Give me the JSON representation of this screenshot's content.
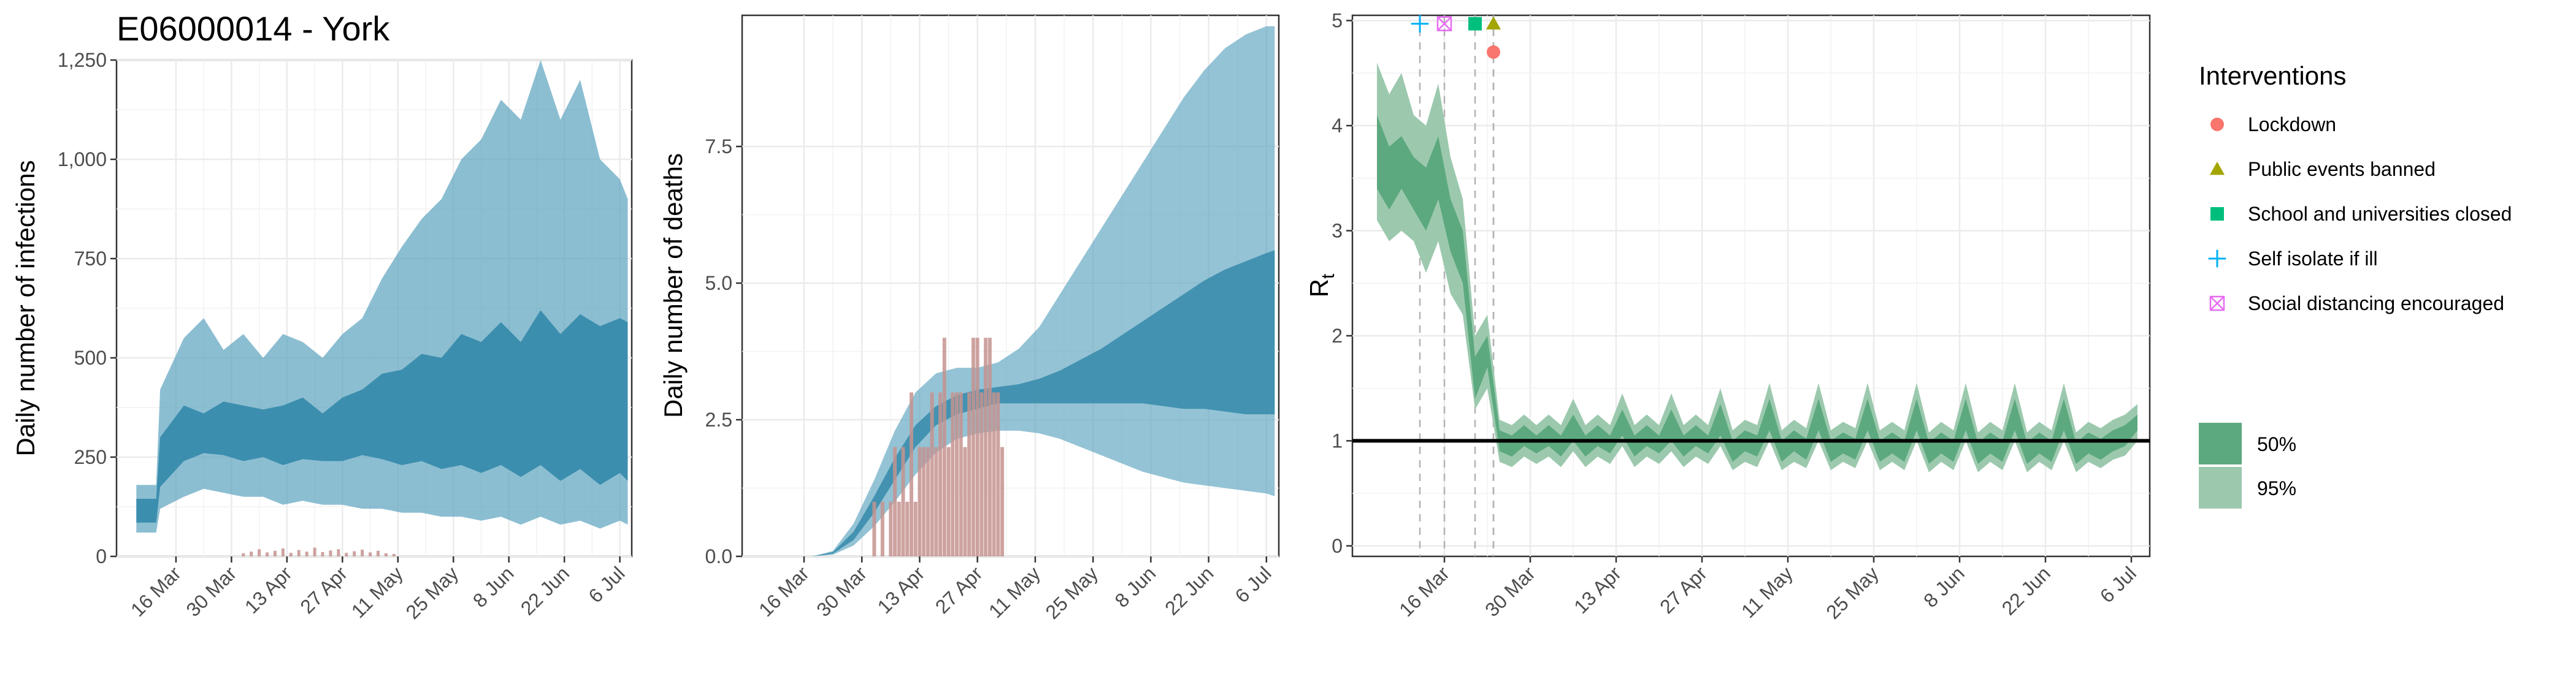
{
  "chart_data": [
    {
      "type": "area",
      "title": "E06000014 - York",
      "ylabel": "Daily number of infections",
      "ylim": [
        0,
        1250
      ],
      "yticks": [
        0,
        250,
        500,
        750,
        1000,
        1250
      ],
      "ytick_labels": [
        "0",
        "250",
        "500",
        "750",
        "1,000",
        "1,250"
      ],
      "xlim_days": [
        -12,
        118
      ],
      "xtick_days": [
        3,
        17,
        31,
        45,
        59,
        73,
        87,
        101,
        115
      ],
      "xtick_labels": [
        "16 Mar",
        "30 Mar",
        "13 Apr",
        "27 Apr",
        "11 May",
        "25 May",
        "8 Jun",
        "22 Jun",
        "6 Jul"
      ],
      "series": [
        {
          "name": "50%",
          "color": "#2e86a8",
          "x": [
            -7,
            -2,
            -1,
            5,
            10,
            15,
            20,
            25,
            30,
            35,
            40,
            45,
            50,
            55,
            60,
            65,
            70,
            75,
            80,
            85,
            90,
            95,
            100,
            105,
            110,
            115,
            117
          ],
          "low": [
            85,
            85,
            175,
            240,
            260,
            255,
            240,
            250,
            230,
            245,
            240,
            240,
            255,
            245,
            230,
            240,
            220,
            230,
            210,
            230,
            200,
            230,
            190,
            220,
            180,
            210,
            190
          ],
          "high": [
            145,
            145,
            300,
            380,
            360,
            390,
            380,
            370,
            380,
            400,
            360,
            400,
            420,
            460,
            470,
            510,
            500,
            560,
            540,
            590,
            540,
            620,
            560,
            610,
            580,
            600,
            590
          ]
        },
        {
          "name": "95%",
          "color": "#5ba3bf",
          "x": [
            -7,
            -2,
            -1,
            5,
            10,
            15,
            20,
            25,
            30,
            35,
            40,
            45,
            50,
            55,
            60,
            65,
            70,
            75,
            80,
            85,
            90,
            95,
            100,
            105,
            110,
            115,
            117
          ],
          "low": [
            60,
            60,
            120,
            150,
            170,
            160,
            150,
            150,
            130,
            140,
            130,
            130,
            120,
            120,
            110,
            110,
            100,
            100,
            90,
            100,
            80,
            100,
            80,
            90,
            70,
            90,
            80
          ],
          "high": [
            180,
            180,
            420,
            550,
            600,
            520,
            560,
            500,
            560,
            540,
            500,
            560,
            600,
            700,
            780,
            850,
            900,
            1000,
            1050,
            1150,
            1100,
            1250,
            1100,
            1200,
            1000,
            950,
            900
          ]
        }
      ],
      "observed_bars": {
        "name": "Observed cases",
        "color": "#c4938f",
        "x": [
          20,
          22,
          24,
          26,
          28,
          30,
          32,
          34,
          36,
          38,
          40,
          42,
          44,
          46,
          48,
          50,
          52,
          54,
          56,
          58
        ],
        "y": [
          8,
          12,
          18,
          10,
          14,
          20,
          9,
          16,
          12,
          22,
          11,
          15,
          18,
          9,
          13,
          17,
          10,
          14,
          8,
          6
        ]
      }
    },
    {
      "type": "area",
      "ylabel": "Daily number of deaths",
      "ylim": [
        0,
        9.9
      ],
      "yticks": [
        0,
        2.5,
        5.0,
        7.5
      ],
      "ytick_labels": [
        "0.0",
        "2.5",
        "5.0",
        "7.5"
      ],
      "xlim_days": [
        -12,
        118
      ],
      "xtick_days": [
        3,
        17,
        31,
        45,
        59,
        73,
        87,
        101,
        115
      ],
      "xtick_labels": [
        "16 Mar",
        "30 Mar",
        "13 Apr",
        "27 Apr",
        "11 May",
        "25 May",
        "8 Jun",
        "22 Jun",
        "6 Jul"
      ],
      "series": [
        {
          "name": "50%",
          "color": "#2e86a8",
          "x": [
            5,
            10,
            15,
            20,
            25,
            30,
            35,
            40,
            45,
            50,
            55,
            60,
            65,
            70,
            75,
            80,
            85,
            90,
            95,
            100,
            105,
            110,
            115,
            117
          ],
          "low": [
            0,
            0.05,
            0.3,
            0.8,
            1.4,
            2.0,
            2.4,
            2.6,
            2.7,
            2.8,
            2.8,
            2.8,
            2.8,
            2.8,
            2.8,
            2.8,
            2.8,
            2.75,
            2.7,
            2.7,
            2.65,
            2.6,
            2.6,
            2.6
          ],
          "high": [
            0,
            0.08,
            0.45,
            1.1,
            1.8,
            2.4,
            2.75,
            2.95,
            3.05,
            3.1,
            3.15,
            3.25,
            3.4,
            3.6,
            3.8,
            4.05,
            4.3,
            4.55,
            4.8,
            5.05,
            5.25,
            5.4,
            5.55,
            5.6
          ]
        },
        {
          "name": "95%",
          "color": "#5ba3bf",
          "x": [
            5,
            10,
            15,
            20,
            25,
            30,
            35,
            40,
            45,
            50,
            55,
            60,
            65,
            70,
            75,
            80,
            85,
            90,
            95,
            100,
            105,
            110,
            115,
            117
          ],
          "low": [
            0,
            0.03,
            0.2,
            0.55,
            1.0,
            1.5,
            1.9,
            2.15,
            2.25,
            2.3,
            2.3,
            2.25,
            2.15,
            2.0,
            1.85,
            1.7,
            1.55,
            1.45,
            1.35,
            1.3,
            1.25,
            1.2,
            1.15,
            1.1
          ],
          "high": [
            0,
            0.1,
            0.6,
            1.4,
            2.3,
            3.0,
            3.35,
            3.45,
            3.45,
            3.55,
            3.8,
            4.2,
            4.8,
            5.4,
            6.0,
            6.6,
            7.2,
            7.8,
            8.4,
            8.9,
            9.3,
            9.55,
            9.7,
            9.7
          ]
        }
      ],
      "observed_bars": {
        "name": "Observed deaths",
        "color": "#c4938f",
        "x": [
          20,
          22,
          24,
          25,
          26,
          27,
          28,
          29,
          30,
          31,
          32,
          33,
          34,
          35,
          36,
          37,
          38,
          39,
          40,
          41,
          42,
          43,
          44,
          45,
          46,
          47,
          48,
          49,
          50,
          51
        ],
        "y": [
          1,
          1,
          1,
          2,
          1,
          2,
          1,
          3,
          1,
          2,
          2,
          2,
          3,
          2,
          3,
          4,
          2,
          3,
          3,
          3,
          2,
          3,
          4,
          4,
          3,
          4,
          4,
          3,
          3,
          2
        ]
      }
    },
    {
      "type": "line",
      "ylabel": "Rt",
      "ylim": [
        -0.1,
        5.05
      ],
      "yticks": [
        0,
        1,
        2,
        3,
        4,
        5
      ],
      "ytick_labels": [
        "0",
        "1",
        "2",
        "3",
        "4",
        "5"
      ],
      "reference_line_y": 1,
      "xlim_days": [
        -12,
        118
      ],
      "xtick_days": [
        3,
        17,
        31,
        45,
        59,
        73,
        87,
        101,
        115
      ],
      "xtick_labels": [
        "16 Mar",
        "30 Mar",
        "13 Apr",
        "27 Apr",
        "11 May",
        "25 May",
        "8 Jun",
        "22 Jun",
        "6 Jul"
      ],
      "interventions": [
        {
          "name": "Self isolate if ill",
          "day": -1,
          "y": 4.97,
          "shape": "plus",
          "color": "#00b0f6"
        },
        {
          "name": "Social distancing encouraged",
          "day": 3,
          "y": 4.97,
          "shape": "boxx",
          "color": "#e76bf3"
        },
        {
          "name": "School and universities closed",
          "day": 8,
          "y": 4.97,
          "shape": "square",
          "color": "#00bf7d"
        },
        {
          "name": "Public events banned",
          "day": 11,
          "y": 4.97,
          "shape": "triangle",
          "color": "#a3a500"
        },
        {
          "name": "Lockdown",
          "day": 11,
          "y": 4.7,
          "shape": "circle",
          "color": "#f8766d"
        }
      ],
      "series": [
        {
          "name": "50%",
          "color": "#5da97f",
          "x": [
            -8,
            -6,
            -4,
            -2,
            0,
            2,
            4,
            6,
            8,
            10,
            12,
            14,
            16,
            18,
            20,
            22,
            24,
            26,
            28,
            30,
            32,
            34,
            36,
            38,
            40,
            42,
            44,
            46,
            48,
            50,
            52,
            54,
            56,
            58,
            60,
            62,
            64,
            66,
            68,
            70,
            72,
            74,
            76,
            78,
            80,
            82,
            84,
            86,
            88,
            90,
            92,
            94,
            96,
            98,
            100,
            102,
            104,
            106,
            108,
            110,
            112,
            114,
            116
          ],
          "low": [
            3.4,
            3.2,
            3.4,
            3.2,
            3.0,
            3.3,
            2.8,
            2.5,
            1.4,
            1.7,
            0.9,
            0.85,
            0.95,
            0.88,
            0.95,
            0.85,
            1.0,
            0.85,
            0.95,
            0.88,
            1.05,
            0.85,
            0.95,
            0.88,
            1.0,
            0.85,
            0.95,
            0.88,
            1.05,
            0.8,
            0.9,
            0.85,
            1.1,
            0.8,
            0.9,
            0.82,
            1.1,
            0.8,
            0.88,
            0.82,
            1.1,
            0.8,
            0.88,
            0.8,
            1.1,
            0.78,
            0.88,
            0.8,
            1.1,
            0.78,
            0.88,
            0.8,
            1.1,
            0.78,
            0.88,
            0.8,
            1.1,
            0.78,
            0.88,
            0.82,
            0.9,
            0.95,
            1.1
          ],
          "high": [
            4.1,
            3.8,
            3.9,
            3.7,
            3.6,
            3.9,
            3.3,
            3.0,
            1.8,
            2.0,
            1.1,
            1.05,
            1.15,
            1.05,
            1.15,
            1.05,
            1.25,
            1.05,
            1.15,
            1.05,
            1.3,
            1.05,
            1.15,
            1.05,
            1.3,
            1.05,
            1.15,
            1.05,
            1.35,
            1.0,
            1.1,
            1.05,
            1.4,
            1.0,
            1.1,
            1.02,
            1.4,
            1.0,
            1.08,
            1.02,
            1.4,
            1.0,
            1.08,
            1.0,
            1.4,
            0.98,
            1.08,
            1.0,
            1.4,
            0.98,
            1.08,
            1.0,
            1.4,
            0.98,
            1.08,
            1.0,
            1.4,
            0.98,
            1.08,
            1.02,
            1.1,
            1.15,
            1.25
          ]
        },
        {
          "name": "95%",
          "color": "#9cc9ae",
          "x": [
            -8,
            -6,
            -4,
            -2,
            0,
            2,
            4,
            6,
            8,
            10,
            12,
            14,
            16,
            18,
            20,
            22,
            24,
            26,
            28,
            30,
            32,
            34,
            36,
            38,
            40,
            42,
            44,
            46,
            48,
            50,
            52,
            54,
            56,
            58,
            60,
            62,
            64,
            66,
            68,
            70,
            72,
            74,
            76,
            78,
            80,
            82,
            84,
            86,
            88,
            90,
            92,
            94,
            96,
            98,
            100,
            102,
            104,
            106,
            108,
            110,
            112,
            114,
            116
          ],
          "low": [
            3.1,
            2.9,
            3.0,
            2.9,
            2.6,
            2.9,
            2.4,
            2.2,
            1.3,
            1.5,
            0.8,
            0.75,
            0.85,
            0.78,
            0.85,
            0.75,
            0.9,
            0.75,
            0.85,
            0.78,
            0.95,
            0.75,
            0.85,
            0.78,
            0.9,
            0.75,
            0.85,
            0.78,
            0.95,
            0.72,
            0.8,
            0.75,
            1.0,
            0.72,
            0.8,
            0.74,
            1.0,
            0.72,
            0.8,
            0.74,
            1.0,
            0.72,
            0.8,
            0.72,
            1.0,
            0.7,
            0.8,
            0.72,
            1.0,
            0.7,
            0.8,
            0.72,
            1.0,
            0.7,
            0.8,
            0.72,
            1.0,
            0.7,
            0.8,
            0.74,
            0.82,
            0.86,
            1.0
          ],
          "high": [
            4.6,
            4.3,
            4.5,
            4.1,
            4.0,
            4.4,
            3.7,
            3.3,
            2.0,
            2.2,
            1.2,
            1.15,
            1.25,
            1.15,
            1.25,
            1.15,
            1.4,
            1.15,
            1.25,
            1.15,
            1.45,
            1.15,
            1.25,
            1.15,
            1.45,
            1.15,
            1.25,
            1.15,
            1.5,
            1.1,
            1.2,
            1.15,
            1.55,
            1.1,
            1.2,
            1.12,
            1.55,
            1.1,
            1.18,
            1.12,
            1.55,
            1.1,
            1.18,
            1.1,
            1.55,
            1.08,
            1.18,
            1.1,
            1.55,
            1.08,
            1.18,
            1.1,
            1.55,
            1.08,
            1.18,
            1.1,
            1.55,
            1.08,
            1.18,
            1.12,
            1.2,
            1.25,
            1.35
          ]
        }
      ]
    }
  ],
  "legend": {
    "interventions_title": "Interventions",
    "interventions": [
      {
        "label": "Lockdown",
        "shape": "circle",
        "color": "#f8766d"
      },
      {
        "label": "Public events banned",
        "shape": "triangle",
        "color": "#a3a500"
      },
      {
        "label": "School and universities closed",
        "shape": "square",
        "color": "#00bf7d"
      },
      {
        "label": "Self isolate if ill",
        "shape": "plus",
        "color": "#00b0f6"
      },
      {
        "label": "Social distancing encouraged",
        "shape": "boxx",
        "color": "#e76bf3"
      }
    ],
    "bands": [
      {
        "label": "50%",
        "color": "#5da97f"
      },
      {
        "label": "95%",
        "color": "#9cc9ae"
      }
    ]
  }
}
